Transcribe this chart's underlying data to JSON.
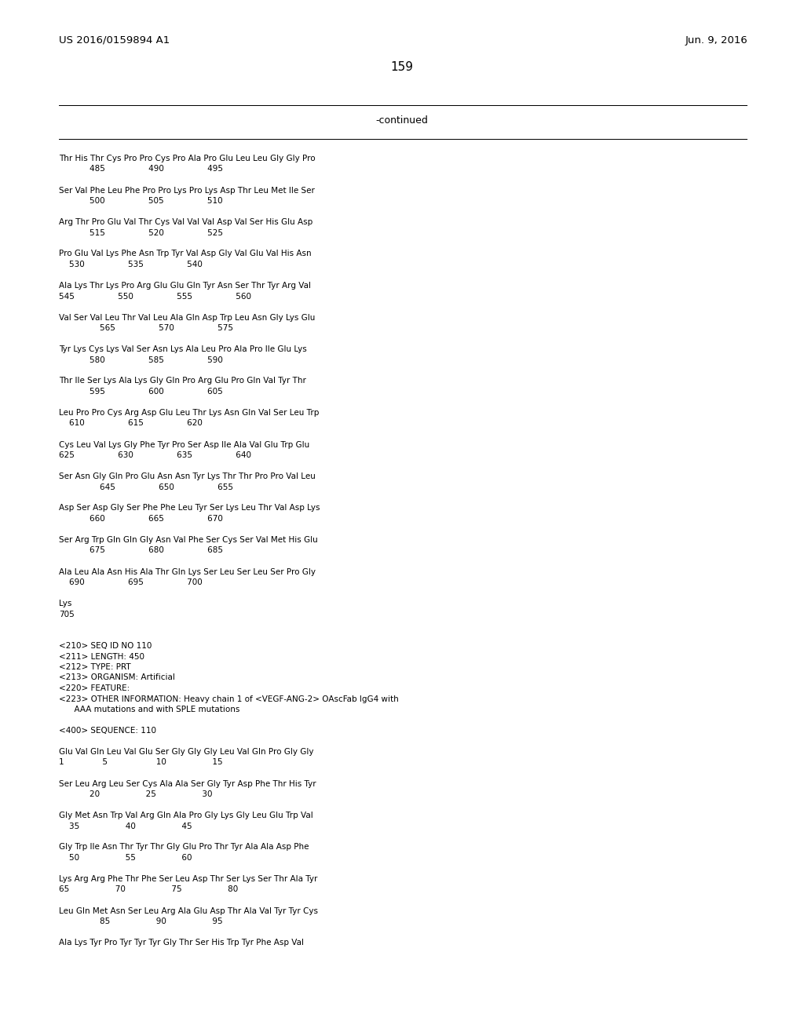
{
  "header_left": "US 2016/0159894 A1",
  "header_right": "Jun. 9, 2016",
  "page_number": "159",
  "continued_label": "-continued",
  "background_color": "#ffffff",
  "text_color": "#000000",
  "font_size": 7.5,
  "mono_font": "Courier New",
  "header_font_size": 9.5,
  "page_num_font_size": 11,
  "content_lines": [
    "Thr His Thr Cys Pro Pro Cys Pro Ala Pro Glu Leu Leu Gly Gly Pro",
    "            485                 490                 495",
    "",
    "Ser Val Phe Leu Phe Pro Pro Lys Pro Lys Asp Thr Leu Met Ile Ser",
    "            500                 505                 510",
    "",
    "Arg Thr Pro Glu Val Thr Cys Val Val Val Asp Val Ser His Glu Asp",
    "            515                 520                 525",
    "",
    "Pro Glu Val Lys Phe Asn Trp Tyr Val Asp Gly Val Glu Val His Asn",
    "    530                 535                 540",
    "",
    "Ala Lys Thr Lys Pro Arg Glu Glu Gln Tyr Asn Ser Thr Tyr Arg Val",
    "545                 550                 555                 560",
    "",
    "Val Ser Val Leu Thr Val Leu Ala Gln Asp Trp Leu Asn Gly Lys Glu",
    "                565                 570                 575",
    "",
    "Tyr Lys Cys Lys Val Ser Asn Lys Ala Leu Pro Ala Pro Ile Glu Lys",
    "            580                 585                 590",
    "",
    "Thr Ile Ser Lys Ala Lys Gly Gln Pro Arg Glu Pro Gln Val Tyr Thr",
    "            595                 600                 605",
    "",
    "Leu Pro Pro Cys Arg Asp Glu Leu Thr Lys Asn Gln Val Ser Leu Trp",
    "    610                 615                 620",
    "",
    "Cys Leu Val Lys Gly Phe Tyr Pro Ser Asp Ile Ala Val Glu Trp Glu",
    "625                 630                 635                 640",
    "",
    "Ser Asn Gly Gln Pro Glu Asn Asn Tyr Lys Thr Thr Pro Pro Val Leu",
    "                645                 650                 655",
    "",
    "Asp Ser Asp Gly Ser Phe Phe Leu Tyr Ser Lys Leu Thr Val Asp Lys",
    "            660                 665                 670",
    "",
    "Ser Arg Trp Gln Gln Gly Asn Val Phe Ser Cys Ser Val Met His Glu",
    "            675                 680                 685",
    "",
    "Ala Leu Ala Asn His Ala Thr Gln Lys Ser Leu Ser Leu Ser Pro Gly",
    "    690                 695                 700",
    "",
    "Lys",
    "705",
    "",
    "",
    "<210> SEQ ID NO 110",
    "<211> LENGTH: 450",
    "<212> TYPE: PRT",
    "<213> ORGANISM: Artificial",
    "<220> FEATURE:",
    "<223> OTHER INFORMATION: Heavy chain 1 of <VEGF-ANG-2> OAscFab IgG4 with",
    "      AAA mutations and with SPLE mutations",
    "",
    "<400> SEQUENCE: 110",
    "",
    "Glu Val Gln Leu Val Glu Ser Gly Gly Gly Leu Val Gln Pro Gly Gly",
    "1               5                   10                  15",
    "",
    "Ser Leu Arg Leu Ser Cys Ala Ala Ser Gly Tyr Asp Phe Thr His Tyr",
    "            20                  25                  30",
    "",
    "Gly Met Asn Trp Val Arg Gln Ala Pro Gly Lys Gly Leu Glu Trp Val",
    "    35                  40                  45",
    "",
    "Gly Trp Ile Asn Thr Tyr Thr Gly Glu Pro Thr Tyr Ala Ala Asp Phe",
    "    50                  55                  60",
    "",
    "Lys Arg Arg Phe Thr Phe Ser Leu Asp Thr Ser Lys Ser Thr Ala Tyr",
    "65                  70                  75                  80",
    "",
    "Leu Gln Met Asn Ser Leu Arg Ala Glu Asp Thr Ala Val Tyr Tyr Cys",
    "                85                  90                  95",
    "",
    "Ala Lys Tyr Pro Tyr Tyr Tyr Gly Thr Ser His Trp Tyr Phe Asp Val"
  ]
}
